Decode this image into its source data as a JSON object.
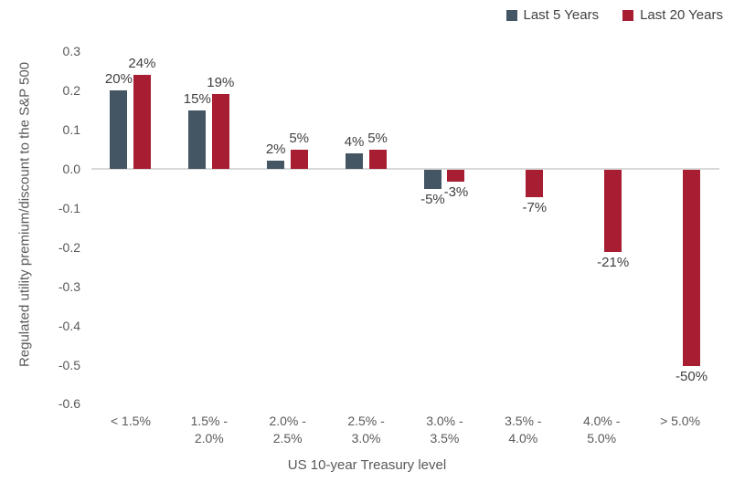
{
  "figure": {
    "background": "#ffffff"
  },
  "chart_data": {
    "type": "bar",
    "title": "",
    "xlabel": "US 10-year Treasury level",
    "ylabel": "Regulated utility premium/discount to the S&P 500",
    "categories": [
      "< 1.5%",
      "1.5% -\n2.0%",
      "2.0% -\n2.5%",
      "2.5% -\n3.0%",
      "3.0% -\n3.5%",
      "3.5% -\n4.0%",
      "4.0% -\n5.0%",
      "> 5.0%"
    ],
    "series": [
      {
        "name": "Last 5 Years",
        "color": "#445564",
        "values": [
          0.2,
          0.15,
          0.02,
          0.04,
          -0.05,
          null,
          null,
          null
        ],
        "labels": [
          "20%",
          "15%",
          "2%",
          "4%",
          "-5%",
          "",
          "",
          ""
        ]
      },
      {
        "name": "Last 20 Years",
        "color": "#A71D32",
        "values": [
          0.24,
          0.19,
          0.05,
          0.05,
          -0.03,
          -0.07,
          -0.21,
          -0.5
        ],
        "labels": [
          "24%",
          "19%",
          "5%",
          "5%",
          "-3%",
          "-7%",
          "-21%",
          "-50%"
        ]
      }
    ],
    "ylim": [
      -0.6,
      0.3
    ],
    "yticks": [
      0.3,
      0.2,
      0.1,
      0.0,
      -0.1,
      -0.2,
      -0.3,
      -0.4,
      -0.5,
      -0.6
    ],
    "ytick_labels": [
      "0.3",
      "0.2",
      "0.1",
      "0.0",
      "-0.1",
      "-0.2",
      "-0.3",
      "-0.4",
      "-0.5",
      "-0.6"
    ],
    "grid": false,
    "legend_position": "top-right",
    "colors": {
      "axis_line": "#D9D9D9",
      "axis_text": "#595959",
      "data_label_text": "#404040"
    }
  }
}
